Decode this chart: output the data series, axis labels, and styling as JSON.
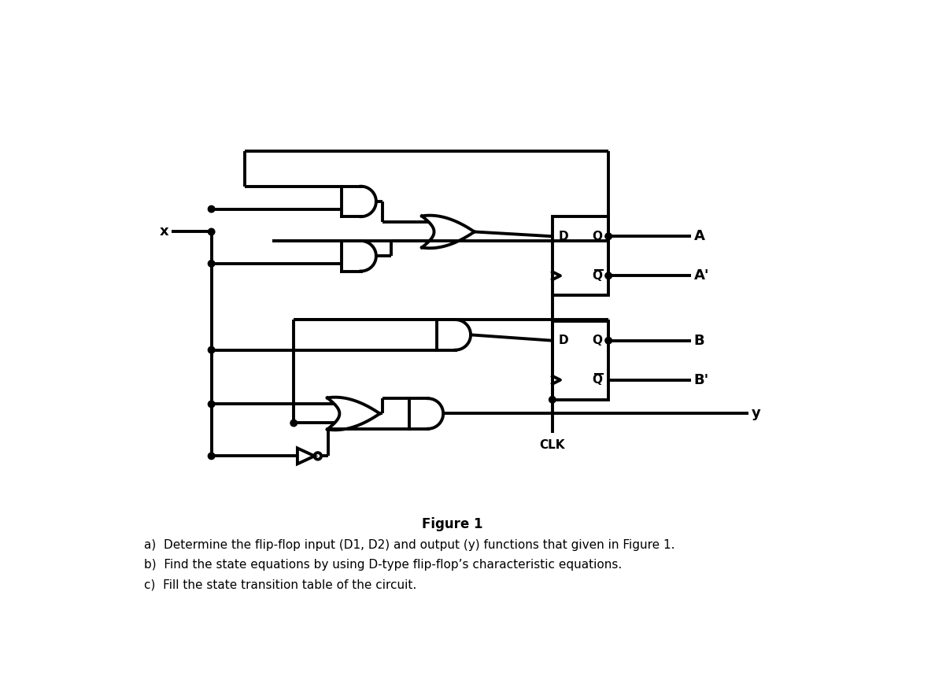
{
  "bg_color": "#ffffff",
  "lw": 2.8,
  "fig_width": 11.88,
  "fig_height": 8.69,
  "title": "Figure 1",
  "text_a": "a)  Determine the flip-flop input (D1, D2) and output (y) functions that given in Figure 1.",
  "text_b": "b)  Find the state equations by using D-type flip-flop’s characteristic equations.",
  "text_c": "c)  Fill the state transition table of the circuit.",
  "x_label": "x",
  "A_label": "A",
  "Aprime_label": "A'",
  "B_label": "B",
  "Bprime_label": "B'",
  "y_label": "y",
  "CLK_label": "CLK"
}
